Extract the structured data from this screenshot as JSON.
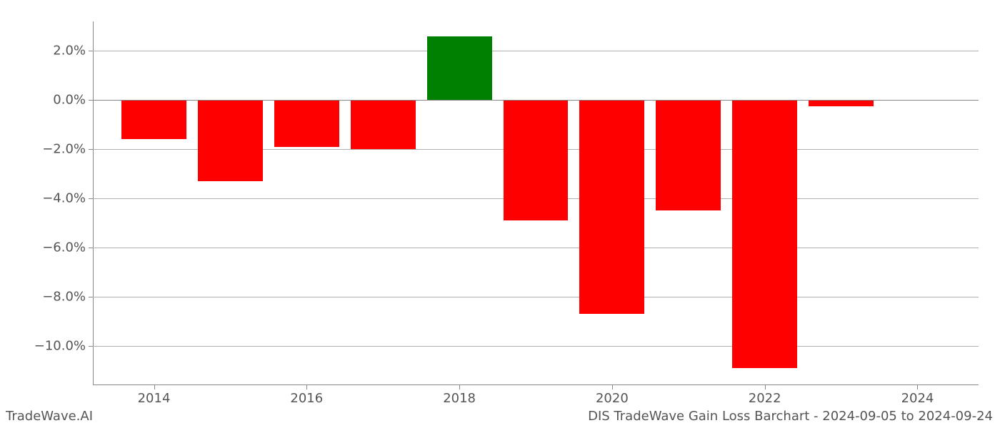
{
  "chart": {
    "type": "bar",
    "years": [
      2014,
      2015,
      2016,
      2017,
      2018,
      2019,
      2020,
      2021,
      2022,
      2023
    ],
    "values": [
      -1.6,
      -3.3,
      -1.9,
      -2.0,
      2.6,
      -4.9,
      -8.7,
      -4.5,
      -10.9,
      -0.25
    ],
    "bar_colors": [
      "#ff0000",
      "#ff0000",
      "#ff0000",
      "#ff0000",
      "#008000",
      "#ff0000",
      "#ff0000",
      "#ff0000",
      "#ff0000",
      "#ff0000"
    ],
    "x_ticks": [
      2014,
      2016,
      2018,
      2020,
      2022,
      2024
    ],
    "x_tick_labels": [
      "2014",
      "2016",
      "2018",
      "2020",
      "2022",
      "2024"
    ],
    "xlim_min": 2013.2,
    "xlim_max": 2024.8,
    "y_ticks": [
      -10.0,
      -8.0,
      -6.0,
      -4.0,
      -2.0,
      0.0,
      2.0
    ],
    "y_tick_labels": [
      "−10.0%",
      "−8.0%",
      "−6.0%",
      "−4.0%",
      "−2.0%",
      "0.0%",
      "2.0%"
    ],
    "ylim_min": -11.6,
    "ylim_max": 3.2,
    "bar_width_years": 0.85,
    "background_color": "#ffffff",
    "grid_color": "#b0b0b0",
    "axis_color": "#888888",
    "tick_fontsize": 18,
    "tick_color": "#555555",
    "footer_fontsize": 18
  },
  "footer": {
    "left": "TradeWave.AI",
    "right": "DIS TradeWave Gain Loss Barchart - 2024-09-05 to 2024-09-24"
  }
}
